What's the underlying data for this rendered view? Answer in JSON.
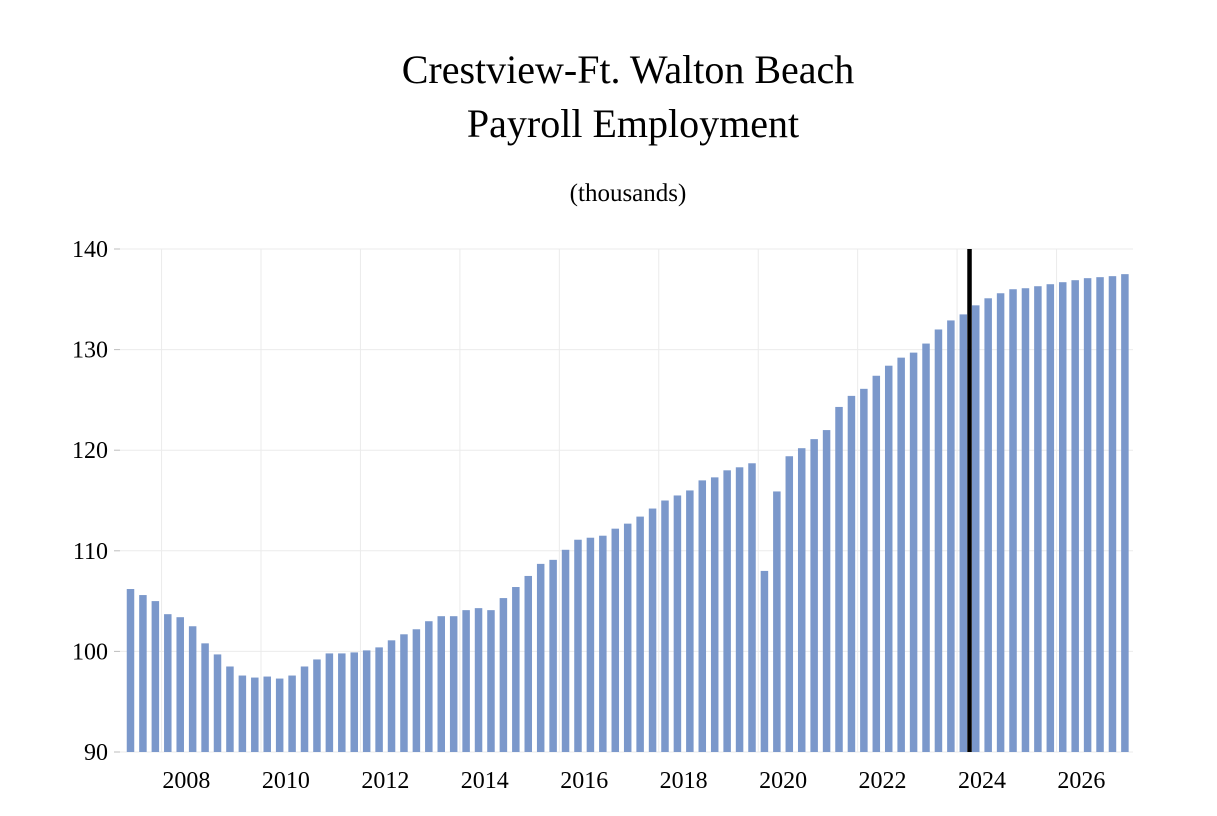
{
  "chart_data": {
    "type": "bar",
    "title_line1": "Crestview-Ft. Walton Beach",
    "title_line2": "Payroll Employment",
    "subtitle": "(thousands)",
    "xlabel": "",
    "ylabel": "",
    "ylim": [
      90,
      140
    ],
    "yticks": [
      90,
      100,
      110,
      120,
      130,
      140
    ],
    "xticks": [
      2008,
      2010,
      2012,
      2014,
      2016,
      2018,
      2020,
      2022,
      2024,
      2026
    ],
    "x_start": "2007-Q2",
    "x_end": "2027-Q2",
    "forecast_line_between": [
      "2024-Q1",
      "2024-Q2"
    ],
    "grid": true,
    "bar_color": "#7b98cb",
    "forecast_line_color": "#000000",
    "series": [
      {
        "values": [
          106.2,
          105.6,
          105.0,
          103.7,
          103.4,
          102.5,
          100.8,
          99.7,
          98.5,
          97.6,
          97.4,
          97.5,
          97.3,
          97.6,
          98.5,
          99.2,
          99.8,
          99.8,
          99.9,
          100.1,
          100.4,
          101.1,
          101.7,
          102.2,
          103.0,
          103.5,
          103.5,
          104.1,
          104.3,
          104.1,
          105.3,
          106.4,
          107.5,
          108.7,
          109.1,
          110.1,
          111.1,
          111.3,
          111.5,
          112.2,
          112.7,
          113.4,
          114.2,
          115.0,
          115.5,
          116.0,
          117.0,
          117.3,
          118.0,
          118.3,
          118.7,
          108.0,
          115.9,
          119.4,
          120.2,
          121.1,
          122.0,
          124.3,
          125.4,
          126.1,
          127.4,
          128.4,
          129.2,
          129.7,
          130.6,
          132.0,
          132.9,
          133.5,
          134.4,
          135.1,
          135.6,
          136.0,
          136.1,
          136.3,
          136.5,
          136.7,
          136.9,
          137.1,
          137.2,
          137.3,
          137.5
        ]
      }
    ]
  }
}
